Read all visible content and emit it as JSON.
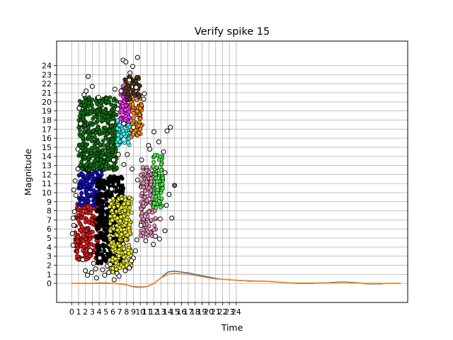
{
  "chart_data": {
    "type": "scatter",
    "title": "Verify spike 15",
    "xlabel": "Time",
    "ylabel": "Magnitude",
    "xlim": [
      -2.2,
      49
    ],
    "ylim": [
      -2.1,
      26.7
    ],
    "x_ticks": [
      0,
      1,
      2,
      3,
      4,
      5,
      6,
      7,
      8,
      9,
      10,
      11,
      12,
      13,
      14,
      15,
      16,
      17,
      18,
      19,
      20,
      21,
      22,
      23,
      24
    ],
    "y_ticks": [
      0,
      1,
      2,
      3,
      4,
      5,
      6,
      7,
      8,
      9,
      10,
      11,
      12,
      13,
      14,
      15,
      16,
      17,
      18,
      19,
      20,
      21,
      22,
      23,
      24
    ],
    "grid": true,
    "cluster_colors": [
      "#e41a1c",
      "#1010cc",
      "#107010",
      "#000000",
      "#e8e830",
      "#ff33ff",
      "#33ffff",
      "#ff8c1a",
      "#e58fb8",
      "#44ee44",
      "#5a3a1a"
    ],
    "clusters": [
      {
        "color": "#e41a1c",
        "x": [
          0.5,
          4.0
        ],
        "y": [
          2.6,
          8.8
        ]
      },
      {
        "color": "#1010cc",
        "x": [
          1.0,
          4.5
        ],
        "y": [
          8.6,
          12.8
        ]
      },
      {
        "color": "#107010",
        "x": [
          1.0,
          6.6
        ],
        "y": [
          12.5,
          20.6
        ]
      },
      {
        "color": "#000000",
        "x": [
          3.6,
          7.6
        ],
        "y": [
          2.2,
          11.8
        ]
      },
      {
        "color": "#e8e830",
        "x": [
          5.5,
          8.8
        ],
        "y": [
          1.2,
          9.6
        ]
      },
      {
        "color": "#ff33ff",
        "x": [
          7.0,
          8.6
        ],
        "y": [
          17.5,
          21.8
        ]
      },
      {
        "color": "#33ffff",
        "x": [
          6.6,
          8.5
        ],
        "y": [
          15.2,
          18.0
        ]
      },
      {
        "color": "#ff8c1a",
        "x": [
          8.6,
          10.3
        ],
        "y": [
          16.0,
          20.5
        ]
      },
      {
        "color": "#e58fb8",
        "x": [
          10.0,
          12.3
        ],
        "y": [
          5.2,
          12.8
        ]
      },
      {
        "color": "#44ee44",
        "x": [
          11.8,
          13.3
        ],
        "y": [
          8.3,
          14.2
        ]
      },
      {
        "color": "#5a3a1a",
        "x": [
          7.6,
          10.0
        ],
        "y": [
          20.2,
          22.8
        ]
      }
    ],
    "outlier_points": [
      [
        0.2,
        4.2
      ],
      [
        0.1,
        5.5
      ],
      [
        0.3,
        6.4
      ],
      [
        0.2,
        7.2
      ],
      [
        0.4,
        7.9
      ],
      [
        0.3,
        10.3
      ],
      [
        0.6,
        9.7
      ],
      [
        0.5,
        11.3
      ],
      [
        0.9,
        12.6
      ],
      [
        0.9,
        14.8
      ],
      [
        1.3,
        17.6
      ],
      [
        1.1,
        19.3
      ],
      [
        1.8,
        20.8
      ],
      [
        2.4,
        22.8
      ],
      [
        2.1,
        21.2
      ],
      [
        3.0,
        21.7
      ],
      [
        3.9,
        20.5
      ],
      [
        3.2,
        2.2
      ],
      [
        3.5,
        1.6
      ],
      [
        2.9,
        1.2
      ],
      [
        4.5,
        1.5
      ],
      [
        5.2,
        1.9
      ],
      [
        6.2,
        0.4
      ],
      [
        5.6,
        2.1
      ],
      [
        6.6,
        1.1
      ],
      [
        7.8,
        1.4
      ],
      [
        8.4,
        1.7
      ],
      [
        9.0,
        2.8
      ],
      [
        6.3,
        21.4
      ],
      [
        7.5,
        24.6
      ],
      [
        7.9,
        24.4
      ],
      [
        8.9,
        23.9
      ],
      [
        8.5,
        23.2
      ],
      [
        8.4,
        22.4
      ],
      [
        9.4,
        21.6
      ],
      [
        10.6,
        20.9
      ],
      [
        10.5,
        20.3
      ],
      [
        9.6,
        24.9
      ],
      [
        9.0,
        17.2
      ],
      [
        11.2,
        15.2
      ],
      [
        12.0,
        16.7
      ],
      [
        12.7,
        15.6
      ],
      [
        13.4,
        14.5
      ],
      [
        13.9,
        16.8
      ],
      [
        14.4,
        17.2
      ],
      [
        13.6,
        12.2
      ],
      [
        14.2,
        9.8
      ],
      [
        13.8,
        8.6
      ],
      [
        12.9,
        7.1
      ],
      [
        12.2,
        5.2
      ],
      [
        11.9,
        4.3
      ],
      [
        10.8,
        4.7
      ],
      [
        10.1,
        6.4
      ],
      [
        13.6,
        5.8
      ],
      [
        14.6,
        7.2
      ],
      [
        12.8,
        4.9
      ],
      [
        5.8,
        10.4
      ],
      [
        6.1,
        13.6
      ],
      [
        6.8,
        14.2
      ],
      [
        7.6,
        13.1
      ],
      [
        8.1,
        14.2
      ],
      [
        8.8,
        12.6
      ],
      [
        9.6,
        11.4
      ],
      [
        10.2,
        13.6
      ],
      [
        11.4,
        14.8
      ],
      [
        7.6,
        17.6
      ],
      [
        6.7,
        19.2
      ],
      [
        7.2,
        21.2
      ],
      [
        2.7,
        3.6
      ],
      [
        1.6,
        2.6
      ],
      [
        2.0,
        1.4
      ],
      [
        4.1,
        2.8
      ],
      [
        9.3,
        3.6
      ],
      [
        9.5,
        4.8
      ],
      [
        8.7,
        2.5
      ],
      [
        6.9,
        0.8
      ],
      [
        5.4,
        1.2
      ],
      [
        4.8,
        0.9
      ],
      [
        2.3,
        0.9
      ],
      [
        3.6,
        0.6
      ]
    ],
    "highlight_point": [
      15.0,
      10.8
    ],
    "series": [
      {
        "color": "#1f77b4",
        "x": [
          0,
          1,
          2,
          3,
          4,
          5,
          6,
          7,
          8,
          9,
          10,
          11,
          12,
          13,
          14,
          15,
          16,
          17,
          18,
          19,
          20,
          21,
          22,
          23,
          24,
          25,
          26,
          27,
          28,
          29,
          30,
          31,
          32,
          33,
          34,
          35,
          36,
          37,
          38,
          39,
          40,
          41,
          42,
          43,
          44,
          45,
          46,
          47,
          48
        ],
        "y": [
          0.0,
          0.0,
          0.0,
          0.0,
          0.05,
          0.05,
          0.0,
          -0.05,
          -0.15,
          -0.35,
          -0.4,
          -0.35,
          0.0,
          0.6,
          1.25,
          1.35,
          1.25,
          1.15,
          1.0,
          0.85,
          0.7,
          0.55,
          0.45,
          0.4,
          0.35,
          0.3,
          0.25,
          0.25,
          0.25,
          0.2,
          0.15,
          0.1,
          0.05,
          0.0,
          0.0,
          0.0,
          0.05,
          0.05,
          0.1,
          0.15,
          0.15,
          0.1,
          0.05,
          -0.05,
          -0.05,
          -0.05,
          0.0,
          0.0,
          0.0
        ]
      },
      {
        "color": "#ff7f0e",
        "x": [
          0,
          1,
          2,
          3,
          4,
          5,
          6,
          7,
          8,
          9,
          10,
          11,
          12,
          13,
          14,
          15,
          16,
          17,
          18,
          19,
          20,
          21,
          22,
          23,
          24,
          25,
          26,
          27,
          28,
          29,
          30,
          31,
          32,
          33,
          34,
          35,
          36,
          37,
          38,
          39,
          40,
          41,
          42,
          43,
          44,
          45,
          46,
          47,
          48
        ],
        "y": [
          0.0,
          0.0,
          0.0,
          0.0,
          0.0,
          0.0,
          0.0,
          -0.05,
          -0.15,
          -0.4,
          -0.45,
          -0.35,
          0.0,
          0.6,
          1.0,
          1.1,
          1.05,
          1.0,
          0.9,
          0.75,
          0.6,
          0.5,
          0.45,
          0.4,
          0.35,
          0.3,
          0.3,
          0.25,
          0.25,
          0.2,
          0.15,
          0.1,
          0.05,
          0.05,
          0.05,
          0.05,
          0.05,
          0.05,
          0.05,
          0.1,
          0.1,
          0.05,
          0.05,
          0.0,
          0.0,
          0.0,
          0.0,
          0.0,
          0.0
        ]
      }
    ]
  }
}
